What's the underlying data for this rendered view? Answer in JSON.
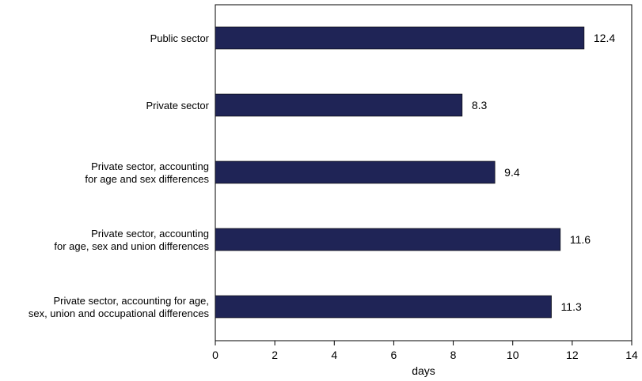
{
  "colors": {
    "bar": "#1f2456",
    "frame": "#000000"
  },
  "chart_data": {
    "type": "bar",
    "orientation": "horizontal",
    "title": "",
    "xlabel": "days",
    "ylabel": "",
    "xlim": [
      0,
      14
    ],
    "xticks": [
      0,
      2,
      4,
      6,
      8,
      10,
      12,
      14
    ],
    "grid": false,
    "categories": [
      [
        "Public sector"
      ],
      [
        "Private sector"
      ],
      [
        "Private sector, accounting",
        "for age and sex differences"
      ],
      [
        "Private sector, accounting",
        "for age, sex and union differences"
      ],
      [
        "Private sector, accounting for age,",
        "sex, union and occupational differences"
      ]
    ],
    "values": [
      12.4,
      8.3,
      9.4,
      11.6,
      11.3
    ],
    "value_labels": [
      "12.4",
      "8.3",
      "9.4",
      "11.6",
      "11.3"
    ]
  }
}
